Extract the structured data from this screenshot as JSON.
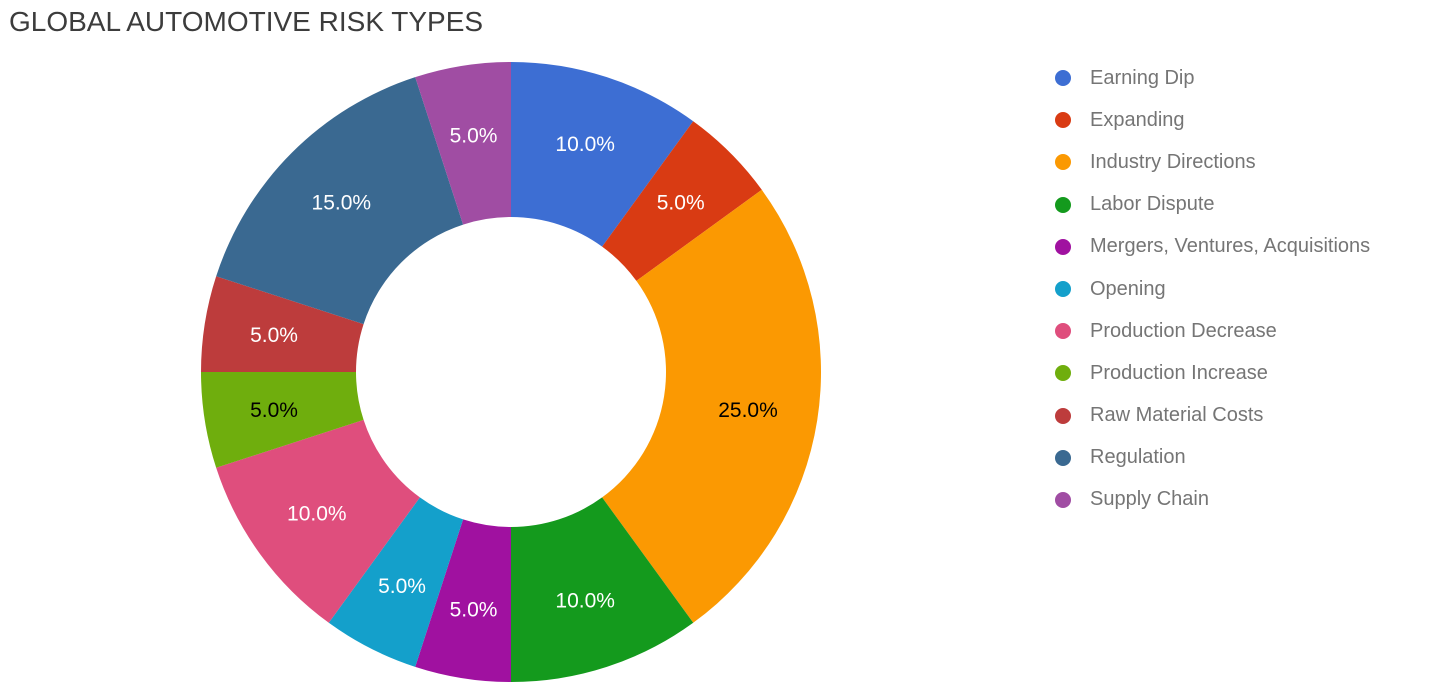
{
  "title": "GLOBAL AUTOMOTIVE RISK TYPES",
  "title_color": "#3c3c3c",
  "legend_text_color": "#757575",
  "chart_data": {
    "type": "pie",
    "subtype": "donut",
    "title": "GLOBAL AUTOMOTIVE RISK TYPES",
    "hole_ratio": 0.5,
    "start_angle_deg": 0,
    "direction": "clockwise",
    "legend_position": "right",
    "value_unit": "percent",
    "categories": [
      "Earning Dip",
      "Expanding",
      "Industry Directions",
      "Labor Dispute",
      "Mergers, Ventures, Acquisitions",
      "Opening",
      "Production Decrease",
      "Production Increase",
      "Raw Material Costs",
      "Regulation",
      "Supply Chain"
    ],
    "values": [
      10.0,
      5.0,
      25.0,
      10.0,
      5.0,
      5.0,
      10.0,
      5.0,
      5.0,
      15.0,
      5.0
    ],
    "slices": [
      {
        "label": "Earning Dip",
        "value_pct": 10.0,
        "display": "10.0%",
        "color": "#3d6ed3",
        "label_color": "#ffffff"
      },
      {
        "label": "Expanding",
        "value_pct": 5.0,
        "display": "5.0%",
        "color": "#d93b13",
        "label_color": "#ffffff"
      },
      {
        "label": "Industry Directions",
        "value_pct": 25.0,
        "display": "25.0%",
        "color": "#fb9902",
        "label_color": "#000000"
      },
      {
        "label": "Labor Dispute",
        "value_pct": 10.0,
        "display": "10.0%",
        "color": "#149a1d",
        "label_color": "#ffffff"
      },
      {
        "label": "Mergers, Ventures, Acquisitions",
        "value_pct": 5.0,
        "display": "5.0%",
        "color": "#a011a0",
        "label_color": "#ffffff"
      },
      {
        "label": "Opening",
        "value_pct": 5.0,
        "display": "5.0%",
        "color": "#14a0cb",
        "label_color": "#ffffff"
      },
      {
        "label": "Production Decrease",
        "value_pct": 10.0,
        "display": "10.0%",
        "color": "#df4e7d",
        "label_color": "#ffffff"
      },
      {
        "label": "Production Increase",
        "value_pct": 5.0,
        "display": "5.0%",
        "color": "#6fae0d",
        "label_color": "#000000"
      },
      {
        "label": "Raw Material Costs",
        "value_pct": 5.0,
        "display": "5.0%",
        "color": "#bd3c3c",
        "label_color": "#ffffff"
      },
      {
        "label": "Regulation",
        "value_pct": 15.0,
        "display": "15.0%",
        "color": "#3a6991",
        "label_color": "#ffffff"
      },
      {
        "label": "Supply Chain",
        "value_pct": 5.0,
        "display": "5.0%",
        "color": "#a04da3",
        "label_color": "#ffffff"
      }
    ]
  }
}
